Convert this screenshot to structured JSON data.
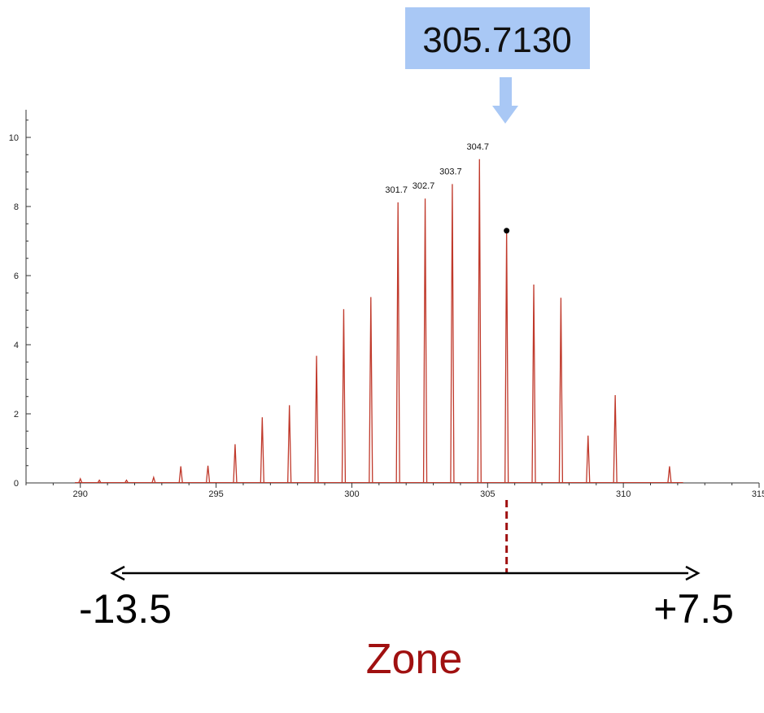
{
  "chart_data": {
    "type": "line",
    "title": "",
    "xlabel": "",
    "ylabel": "",
    "xlim": [
      288,
      315
    ],
    "ylim": [
      0,
      10.8
    ],
    "x_ticks": [
      290,
      295,
      300,
      305,
      310,
      315
    ],
    "y_ticks": [
      0,
      2,
      4,
      6,
      8,
      10
    ],
    "grid": false,
    "series": [
      {
        "name": "",
        "color": "#c0392b",
        "peaks": [
          {
            "x": 290.0,
            "y": 0.12
          },
          {
            "x": 290.7,
            "y": 0.08
          },
          {
            "x": 291.7,
            "y": 0.08
          },
          {
            "x": 292.7,
            "y": 0.16
          },
          {
            "x": 293.7,
            "y": 0.48
          },
          {
            "x": 294.7,
            "y": 0.5
          },
          {
            "x": 295.7,
            "y": 1.12
          },
          {
            "x": 296.7,
            "y": 1.9
          },
          {
            "x": 297.7,
            "y": 2.25
          },
          {
            "x": 298.7,
            "y": 3.68
          },
          {
            "x": 299.7,
            "y": 5.03
          },
          {
            "x": 300.7,
            "y": 5.38
          },
          {
            "x": 301.7,
            "y": 8.12
          },
          {
            "x": 302.7,
            "y": 8.23
          },
          {
            "x": 303.7,
            "y": 8.65
          },
          {
            "x": 304.7,
            "y": 9.37
          },
          {
            "x": 305.7,
            "y": 7.3
          },
          {
            "x": 306.7,
            "y": 5.74
          },
          {
            "x": 307.7,
            "y": 5.36
          },
          {
            "x": 308.7,
            "y": 1.37
          },
          {
            "x": 309.7,
            "y": 2.54
          },
          {
            "x": 311.7,
            "y": 0.48
          }
        ]
      }
    ],
    "annotations": [
      {
        "text": "301.7",
        "x": 301.7,
        "y": 8.12
      },
      {
        "text": "302.7",
        "x": 302.7,
        "y": 8.23
      },
      {
        "text": "303.7",
        "x": 303.7,
        "y": 8.65
      },
      {
        "text": "304.7",
        "x": 304.7,
        "y": 9.37
      }
    ],
    "marker": {
      "x": 305.7,
      "y": 7.3,
      "color": "#000000"
    }
  },
  "callout": {
    "label": "305.7130",
    "box_color": "#a9c8f5",
    "arrow_color": "#a9c8f5"
  },
  "range": {
    "left_label": "-13.5",
    "right_label": "+7.5",
    "zone_label": "Zone",
    "zone_color": "#a01010",
    "marker_color": "#a01010"
  }
}
